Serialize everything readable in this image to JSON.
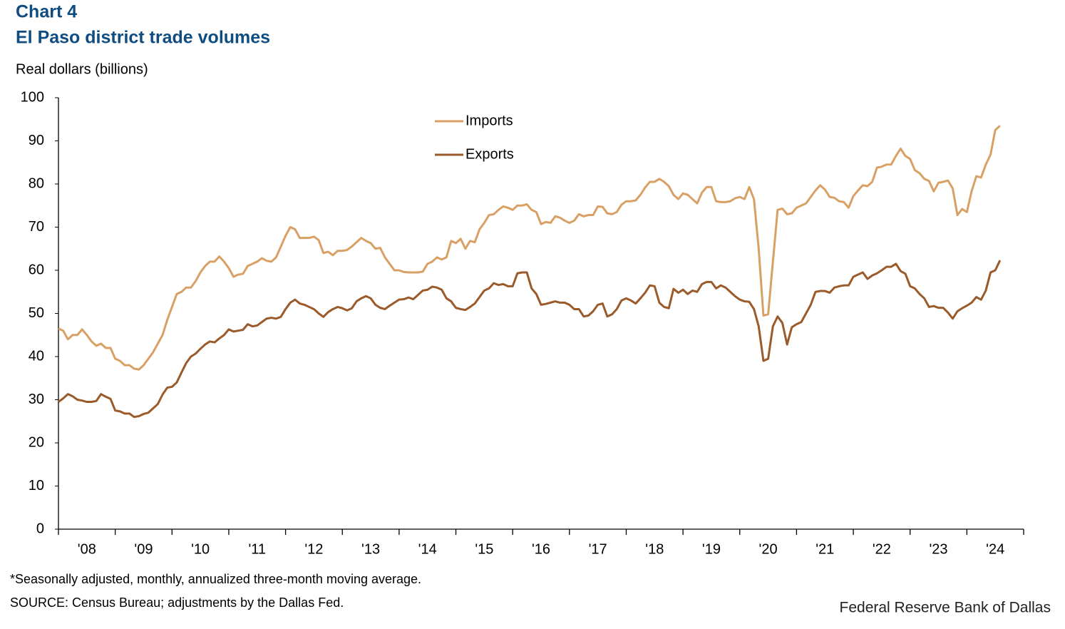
{
  "chart_data": {
    "type": "line",
    "title": "Chart 4",
    "subtitle": "El Paso district trade volumes",
    "y_label": "Real dollars (billions)",
    "footnote": "*Seasonally adjusted, monthly, annualized three-month moving average.",
    "source": "SOURCE: Census Bureau; adjustments by the Dallas Fed.",
    "credit": "Federal Reserve Bank of Dallas",
    "legend": "top",
    "grid": false,
    "ylim": [
      0,
      100
    ],
    "yticks": [
      0,
      10,
      20,
      30,
      40,
      50,
      60,
      70,
      80,
      90,
      100
    ],
    "categories": [
      null,
      null,
      null,
      null,
      null,
      null,
      "'08",
      null,
      null,
      null,
      null,
      null,
      null,
      null,
      null,
      null,
      null,
      null,
      "'09",
      null,
      null,
      null,
      null,
      null,
      null,
      null,
      null,
      null,
      null,
      null,
      "'10",
      null,
      null,
      null,
      null,
      null,
      null,
      null,
      null,
      null,
      null,
      null,
      "'11",
      null,
      null,
      null,
      null,
      null,
      null,
      null,
      null,
      null,
      null,
      null,
      "'12",
      null,
      null,
      null,
      null,
      null,
      null,
      null,
      null,
      null,
      null,
      null,
      "'13",
      null,
      null,
      null,
      null,
      null,
      null,
      null,
      null,
      null,
      null,
      null,
      "'14",
      null,
      null,
      null,
      null,
      null,
      null,
      null,
      null,
      null,
      null,
      null,
      "'15",
      null,
      null,
      null,
      null,
      null,
      null,
      null,
      null,
      null,
      null,
      null,
      "'16",
      null,
      null,
      null,
      null,
      null,
      null,
      null,
      null,
      null,
      null,
      null,
      "'17",
      null,
      null,
      null,
      null,
      null,
      null,
      null,
      null,
      null,
      null,
      null,
      "'18",
      null,
      null,
      null,
      null,
      null,
      null,
      null,
      null,
      null,
      null,
      null,
      "'19",
      null,
      null,
      null,
      null,
      null,
      null,
      null,
      null,
      null,
      null,
      null,
      "'20",
      null,
      null,
      null,
      null,
      null,
      null,
      null,
      null,
      null,
      null,
      null,
      "'21",
      null,
      null,
      null,
      null,
      null,
      null,
      null,
      null,
      null,
      null,
      null,
      "'22",
      null,
      null,
      null,
      null,
      null,
      null,
      null,
      null,
      null,
      null,
      null,
      "'23",
      null,
      null,
      null,
      null,
      null,
      null,
      null,
      null,
      null,
      null,
      null,
      "'24",
      null,
      null,
      null,
      null,
      null
    ],
    "series": [
      {
        "name": "Imports",
        "color": "#d9a066",
        "values": [
          46.5,
          46,
          44,
          45,
          45,
          46.3,
          45,
          43.5,
          42.5,
          43,
          42,
          42,
          39.5,
          39,
          38,
          38,
          37.2,
          37,
          38,
          39.5,
          41,
          43,
          45,
          48.5,
          51.5,
          54.5,
          55,
          56,
          56,
          57.5,
          59.5,
          61,
          62,
          62,
          63.2,
          62,
          60.5,
          58.5,
          59,
          59.2,
          61,
          61.5,
          62,
          62.8,
          62.2,
          62,
          63,
          65.5,
          68,
          70,
          69.5,
          67.5,
          67.5,
          67.5,
          67.8,
          67,
          64,
          64.3,
          63.5,
          64.5,
          64.5,
          64.7,
          65.5,
          66.5,
          67.5,
          66.8,
          66.3,
          65,
          65.2,
          63,
          61.5,
          60,
          60,
          59.6,
          59.5,
          59.5,
          59.5,
          59.7,
          61.5,
          62,
          63,
          62.5,
          63,
          66.8,
          66.3,
          67.3,
          65,
          66.8,
          66.5,
          69.5,
          71,
          72.8,
          73,
          74,
          74.8,
          74.5,
          74,
          75,
          75,
          75.3,
          74,
          73.5,
          70.7,
          71.2,
          71,
          72.5,
          72.2,
          71.5,
          71,
          71.5,
          73,
          72.5,
          72.8,
          72.8,
          74.8,
          74.7,
          73.2,
          73,
          73.5,
          75.2,
          76,
          76,
          76.2,
          77.5,
          79.2,
          80.5,
          80.5,
          81.2,
          80.5,
          79.5,
          77.5,
          76.5,
          77.8,
          77.5,
          76.5,
          75.5,
          78,
          79.3,
          79.3,
          76,
          75.8,
          75.8,
          76,
          76.7,
          77,
          76.5,
          79.3,
          76.5,
          65,
          49.5,
          49.8,
          62,
          74,
          74.3,
          73,
          73.2,
          74.5,
          75,
          75.5,
          77,
          78.5,
          79.7,
          78.7,
          77,
          76.8,
          76,
          75.8,
          74.5,
          77.2,
          78.5,
          79.7,
          79.5,
          80.5,
          83.8,
          84,
          84.5,
          84.5,
          86.5,
          88.2,
          86.5,
          85.8,
          83.2,
          82.5,
          81.2,
          80.7,
          78.3,
          80.3,
          80.5,
          80.8,
          79,
          72.8,
          74.2,
          73.5,
          78.3,
          81.8,
          81.5,
          84.5,
          86.8,
          92.5,
          93.5,
          null,
          null,
          null,
          null
        ]
      },
      {
        "name": "Exports",
        "color": "#9a5a2a",
        "values": [
          29.5,
          30.3,
          31.3,
          30.8,
          30,
          29.8,
          29.5,
          29.5,
          29.7,
          31.3,
          30.7,
          30.2,
          27.5,
          27.3,
          26.8,
          26.8,
          26,
          26.2,
          26.7,
          27,
          28,
          29,
          31.2,
          32.8,
          33,
          34,
          36.3,
          38.5,
          40,
          40.7,
          41.8,
          42.8,
          43.5,
          43.3,
          44.2,
          45,
          46.3,
          45.8,
          46,
          46.2,
          47.5,
          47,
          47.2,
          48,
          48.8,
          49,
          48.8,
          49.2,
          51,
          52.5,
          53.2,
          52.3,
          52,
          51.5,
          51,
          50,
          49.2,
          50.3,
          51,
          51.5,
          51.2,
          50.7,
          51.2,
          52.8,
          53.5,
          54,
          53.5,
          52,
          51.3,
          51,
          51.8,
          52.5,
          53.2,
          53.3,
          53.7,
          53.3,
          54.3,
          55.3,
          55.5,
          56.2,
          56,
          55.5,
          53.5,
          52.8,
          51.3,
          51,
          50.8,
          51.5,
          52.3,
          53.8,
          55.3,
          55.8,
          57,
          56.6,
          56.8,
          56.3,
          56.3,
          59.3,
          59.5,
          59.5,
          55.8,
          54.5,
          52,
          52.2,
          52.5,
          52.8,
          52.5,
          52.5,
          52,
          51,
          51,
          49.3,
          49.5,
          50.5,
          52,
          52.3,
          49.3,
          49.8,
          51,
          53,
          53.5,
          53,
          52.3,
          53.5,
          54.8,
          56.5,
          56.3,
          52.5,
          51.5,
          51.2,
          55.7,
          54.8,
          55.5,
          54.5,
          55.3,
          55,
          56.8,
          57.3,
          57.3,
          55.8,
          56.5,
          56,
          55,
          54,
          53.2,
          52.8,
          52.7,
          51,
          47,
          39,
          39.5,
          47,
          49.3,
          47.8,
          42.8,
          46.8,
          47.5,
          48,
          50,
          52,
          55,
          55.2,
          55.2,
          54.8,
          56,
          56.3,
          56.5,
          56.5,
          58.5,
          59,
          59.5,
          58,
          58.8,
          59.3,
          60,
          60.8,
          60.8,
          61.5,
          59.8,
          59.2,
          56.3,
          55.8,
          54.5,
          53.5,
          51.5,
          51.7,
          51.3,
          51.3,
          50.2,
          48.8,
          50.5,
          51.2,
          51.8,
          52.5,
          53.8,
          53.2,
          55.3,
          59.5,
          60,
          62.3,
          null,
          null,
          null,
          null
        ]
      }
    ]
  }
}
